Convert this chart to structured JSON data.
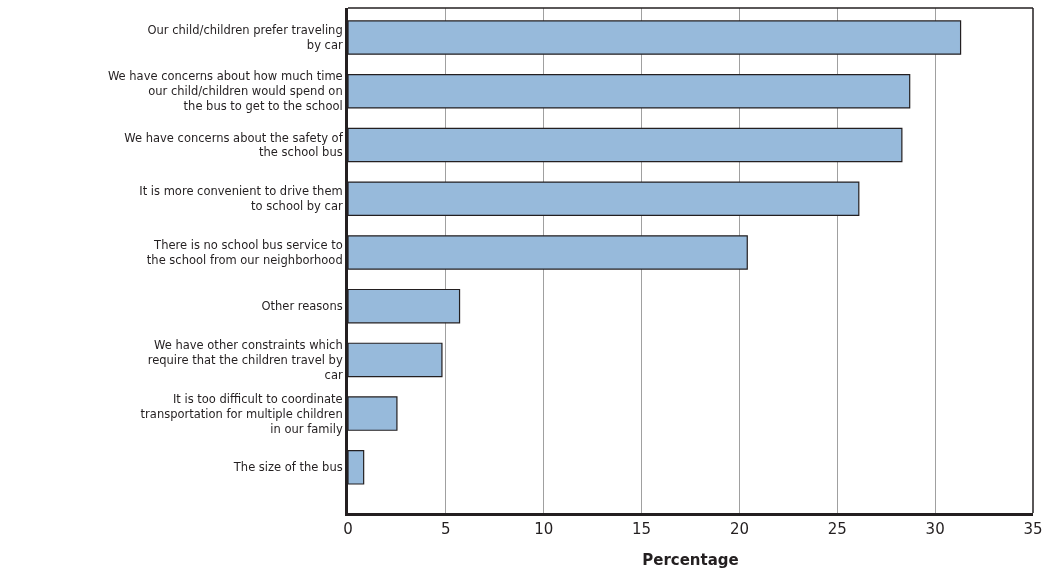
{
  "chart_data": {
    "type": "bar",
    "orientation": "horizontal",
    "xlabel": "Percentage",
    "categories": [
      "Our child/children prefer traveling by car",
      "We have concerns about how much time our child/children would spend on the bus to get to the school",
      "We have concerns about the safety of the school bus",
      "It is more convenient to drive them to school by car",
      "There is no school bus service to the school from our neighborhood",
      "Other reasons",
      "We have other constraints which require that the children travel by car",
      "It is too difficult to coordinate transportation for multiple children in our family",
      "The size of the bus"
    ],
    "values": [
      31.3,
      28.7,
      28.3,
      26.1,
      20.4,
      5.7,
      4.8,
      2.5,
      0.8
    ],
    "color": "#97badb",
    "xlim": [
      0,
      35
    ],
    "xticks": [
      0,
      5,
      10,
      15,
      20,
      25,
      30,
      35
    ],
    "grid": "x",
    "legend": false
  }
}
